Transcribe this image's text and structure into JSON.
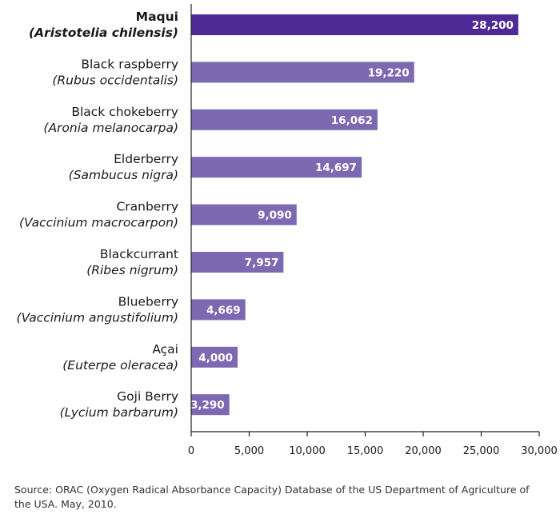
{
  "chart_data": {
    "type": "bar",
    "orientation": "horizontal",
    "categories": [
      {
        "name": "Maqui",
        "scientific": "(Aristotelia chilensis)",
        "highlight": true
      },
      {
        "name": "Black raspberry",
        "scientific": "(Rubus occidentalis)",
        "highlight": false
      },
      {
        "name": "Black chokeberry",
        "scientific": "(Aronia melanocarpa)",
        "highlight": false
      },
      {
        "name": "Elderberry",
        "scientific": "(Sambucus nigra)",
        "highlight": false
      },
      {
        "name": "Cranberry",
        "scientific": "(Vaccinium macrocarpon)",
        "highlight": false
      },
      {
        "name": "Blackcurrant",
        "scientific": "(Ribes nigrum)",
        "highlight": false
      },
      {
        "name": "Blueberry",
        "scientific": "(Vaccinium angustifolium)",
        "highlight": false
      },
      {
        "name": "Açai",
        "scientific": "(Euterpe oleracea)",
        "highlight": false
      },
      {
        "name": "Goji Berry",
        "scientific": "(Lycium barbarum)",
        "highlight": false
      }
    ],
    "values": [
      28200,
      19220,
      16062,
      14697,
      9090,
      7957,
      4669,
      4000,
      3290
    ],
    "value_labels": [
      "28,200",
      "19,220",
      "16,062",
      "14,697",
      "9,090",
      "7,957",
      "4,669",
      "4,000",
      "3,290"
    ],
    "xlim": [
      0,
      30000
    ],
    "x_ticks": [
      0,
      5000,
      10000,
      15000,
      20000,
      25000,
      30000
    ],
    "x_tick_labels": [
      "0",
      "5,000",
      "10,000",
      "15,000",
      "20,000",
      "25,000",
      "30,000"
    ],
    "grid": false,
    "colors": {
      "highlight_bar": "#4e2a96",
      "bar": "#7d69b1",
      "bar_label": "#ffffff",
      "axis": "#222222"
    }
  },
  "source": "Source: ORAC (Oxygen Radical Absorbance Capacity) Database of the US Department of Agriculture of the USA. May, 2010."
}
